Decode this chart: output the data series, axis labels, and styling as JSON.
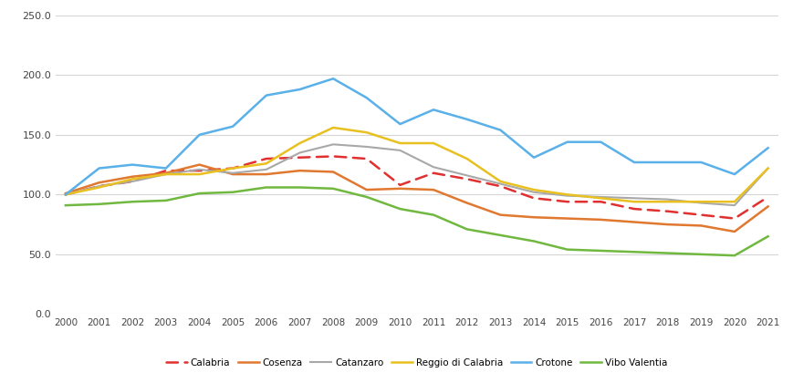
{
  "years": [
    2000,
    2001,
    2002,
    2003,
    2004,
    2005,
    2006,
    2007,
    2008,
    2009,
    2010,
    2011,
    2012,
    2013,
    2014,
    2015,
    2016,
    2017,
    2018,
    2019,
    2020,
    2021
  ],
  "series": {
    "Calabria": [
      100,
      107,
      111,
      120,
      120,
      122,
      130,
      131,
      132,
      130,
      108,
      118,
      113,
      107,
      97,
      94,
      94,
      88,
      86,
      83,
      80,
      98
    ],
    "Cosenza": [
      101,
      110,
      115,
      118,
      125,
      117,
      117,
      120,
      119,
      104,
      105,
      104,
      93,
      83,
      81,
      80,
      79,
      77,
      75,
      74,
      69,
      90
    ],
    "Catanzaro": [
      100,
      107,
      111,
      117,
      121,
      118,
      121,
      135,
      142,
      140,
      137,
      123,
      116,
      109,
      102,
      99,
      98,
      97,
      96,
      93,
      91,
      122
    ],
    "Reggio di Calabria": [
      100,
      106,
      113,
      117,
      117,
      122,
      126,
      143,
      156,
      152,
      143,
      143,
      130,
      111,
      104,
      100,
      97,
      94,
      94,
      94,
      94,
      122
    ],
    "Crotone": [
      100,
      122,
      125,
      122,
      150,
      157,
      183,
      188,
      197,
      181,
      159,
      171,
      163,
      154,
      131,
      144,
      144,
      127,
      127,
      127,
      117,
      139
    ],
    "Vibo Valentia": [
      91,
      92,
      94,
      95,
      101,
      102,
      106,
      106,
      105,
      98,
      88,
      83,
      71,
      66,
      61,
      54,
      53,
      52,
      51,
      50,
      49,
      65
    ]
  },
  "colors": {
    "Calabria": "#e03030",
    "Cosenza": "#e07830",
    "Catanzaro": "#a8a8a8",
    "Reggio di Calabria": "#e8c020",
    "Crotone": "#5ab0e8",
    "Vibo Valentia": "#70b840"
  },
  "ylim": [
    0,
    250
  ],
  "yticks": [
    0.0,
    50.0,
    100.0,
    150.0,
    200.0,
    250.0
  ],
  "background_color": "#ffffff",
  "grid_color": "#d5d5d5",
  "legend_order": [
    "Calabria",
    "Cosenza",
    "Catanzaro",
    "Reggio di Calabria",
    "Crotone",
    "Vibo Valentia"
  ]
}
